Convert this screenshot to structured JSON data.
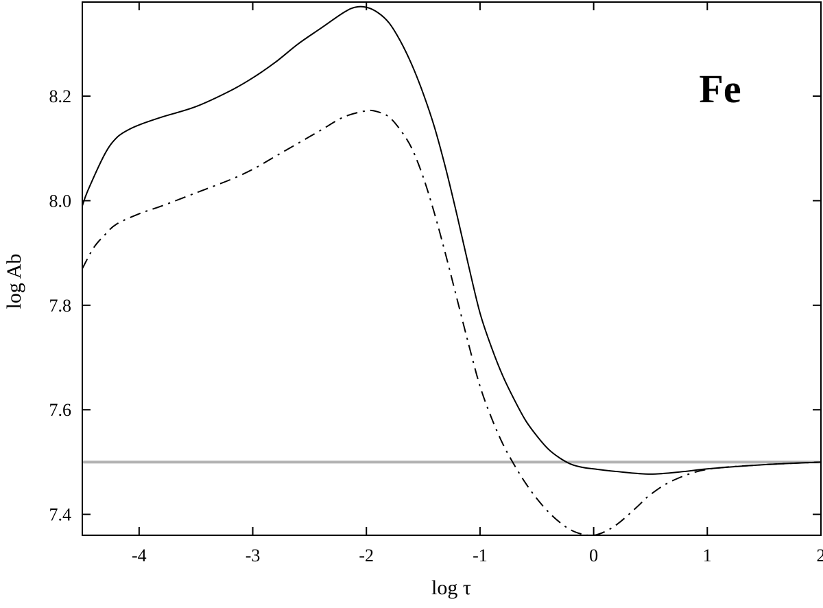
{
  "chart_data": {
    "type": "line",
    "title": "",
    "xlabel": "log τ",
    "ylabel": "log Ab",
    "xlim": [
      -4.5,
      2.0
    ],
    "ylim": [
      7.36,
      8.38
    ],
    "x_ticks": [
      -4,
      -3,
      -2,
      -1,
      0,
      1,
      2
    ],
    "x_tick_labels": [
      "-4",
      "-3",
      "-2",
      "-1",
      "0",
      "1",
      "2"
    ],
    "y_ticks": [
      7.4,
      7.6,
      7.8,
      8.0,
      8.2
    ],
    "y_tick_labels": [
      "7.4",
      "7.6",
      "7.8",
      "8.0",
      "8.2"
    ],
    "grid": false,
    "annotations": [
      {
        "text": "Fe",
        "x": 1.0,
        "y": 8.19
      }
    ],
    "series": [
      {
        "style": "solid",
        "color": "#000000",
        "x": [
          -4.5,
          -4.45,
          -4.3,
          -4.2,
          -4.1,
          -4.0,
          -3.8,
          -3.5,
          -3.2,
          -3.0,
          -2.8,
          -2.6,
          -2.4,
          -2.2,
          -2.1,
          -2.0,
          -1.9,
          -1.8,
          -1.7,
          -1.6,
          -1.5,
          -1.4,
          -1.3,
          -1.2,
          -1.1,
          -1.0,
          -0.9,
          -0.8,
          -0.7,
          -0.6,
          -0.5,
          -0.4,
          -0.3,
          -0.2,
          -0.1,
          0.0,
          0.2,
          0.5,
          0.8,
          1.0,
          1.5,
          2.0
        ],
        "y": [
          7.99,
          8.02,
          8.09,
          8.12,
          8.135,
          8.145,
          8.16,
          8.18,
          8.21,
          8.235,
          8.265,
          8.3,
          8.33,
          8.36,
          8.37,
          8.37,
          8.36,
          8.34,
          8.305,
          8.26,
          8.205,
          8.14,
          8.06,
          7.97,
          7.875,
          7.785,
          7.72,
          7.665,
          7.62,
          7.58,
          7.55,
          7.525,
          7.508,
          7.496,
          7.49,
          7.487,
          7.482,
          7.477,
          7.482,
          7.487,
          7.495,
          7.5
        ]
      },
      {
        "style": "dash-dot",
        "color": "#000000",
        "x": [
          -4.5,
          -4.4,
          -4.3,
          -4.2,
          -4.0,
          -3.8,
          -3.5,
          -3.2,
          -3.0,
          -2.8,
          -2.6,
          -2.4,
          -2.2,
          -2.0,
          -1.9,
          -1.8,
          -1.7,
          -1.6,
          -1.5,
          -1.4,
          -1.3,
          -1.2,
          -1.1,
          -1.0,
          -0.9,
          -0.8,
          -0.7,
          -0.6,
          -0.5,
          -0.4,
          -0.3,
          -0.2,
          -0.1,
          0.0,
          0.1,
          0.2,
          0.3,
          0.4,
          0.5,
          0.7,
          1.0,
          1.5,
          2.0
        ],
        "y": [
          7.87,
          7.91,
          7.935,
          7.955,
          7.975,
          7.99,
          8.015,
          8.04,
          8.06,
          8.085,
          8.11,
          8.135,
          8.16,
          8.172,
          8.17,
          8.16,
          8.135,
          8.1,
          8.045,
          7.975,
          7.895,
          7.81,
          7.725,
          7.645,
          7.585,
          7.535,
          7.495,
          7.46,
          7.43,
          7.405,
          7.385,
          7.37,
          7.362,
          7.36,
          7.367,
          7.38,
          7.398,
          7.418,
          7.438,
          7.465,
          7.486,
          7.495,
          7.5
        ]
      },
      {
        "style": "solid",
        "color": "#b3b3b3",
        "x": [
          -4.5,
          2.0
        ],
        "y": [
          7.5,
          7.5
        ]
      }
    ]
  }
}
